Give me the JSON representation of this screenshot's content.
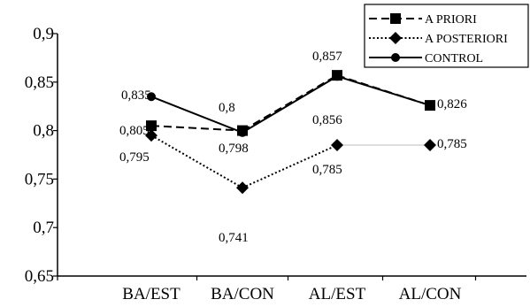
{
  "chart_data": {
    "type": "line",
    "categories": [
      "BA/EST",
      "BA/CON",
      "AL/EST",
      "AL/CON"
    ],
    "ylim": [
      0.65,
      0.9
    ],
    "yticks": [
      0.65,
      0.7,
      0.75,
      0.8,
      0.85,
      0.9
    ],
    "ytick_labels": [
      "0,65",
      "0,7",
      "0,75",
      "0,8",
      "0,85",
      "0,9"
    ],
    "grid": false,
    "legend_position": "top-right",
    "series": [
      {
        "name": "A PRIORI",
        "values": [
          0.805,
          0.8,
          0.857,
          0.826
        ],
        "labels": [
          "0,805",
          "0,8",
          "0,857",
          "0,826"
        ],
        "line_style": "dashed",
        "marker": "square",
        "color": "#000000"
      },
      {
        "name": "A POSTERIORI",
        "values": [
          0.795,
          0.741,
          0.785,
          0.785
        ],
        "labels": [
          "0,795",
          "0,741",
          "0,785",
          "0,785"
        ],
        "line_style": "dotted",
        "marker": "diamond",
        "color": "#000000"
      },
      {
        "name": "CONTROL",
        "values": [
          0.835,
          0.798,
          0.856,
          0.826
        ],
        "labels": [
          "0,835",
          "0,798",
          "0,856",
          ""
        ],
        "line_style": "solid",
        "marker": "circle",
        "color": "#000000"
      }
    ]
  }
}
